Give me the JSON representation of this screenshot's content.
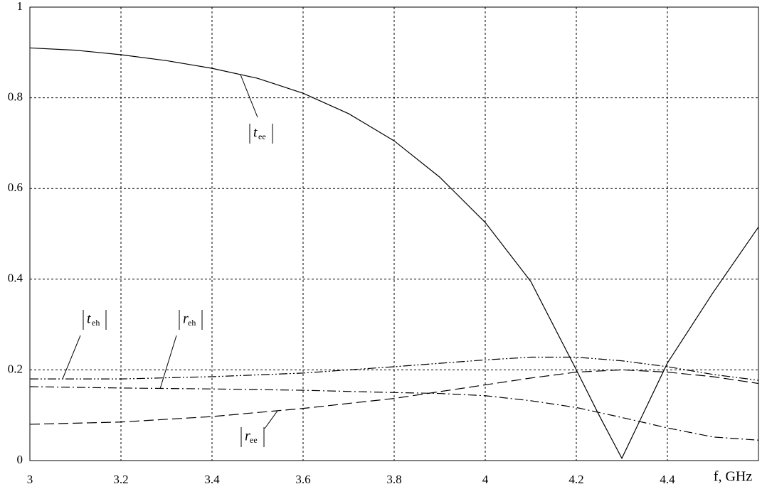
{
  "chart_data": {
    "type": "line",
    "x_label": "f, GHz",
    "xlim": [
      3,
      4.6
    ],
    "xticks": [
      3,
      3.2,
      3.4,
      3.6,
      3.8,
      4,
      4.2,
      4.4
    ],
    "ylim": [
      0,
      1
    ],
    "yticks": [
      0,
      0.2,
      0.4,
      0.6,
      0.8,
      1
    ],
    "grid": true,
    "series": [
      {
        "name": "t",
        "subscript": "ee",
        "color": "#000000",
        "linestyle": "solid",
        "x": [
          3,
          3.1,
          3.2,
          3.3,
          3.4,
          3.5,
          3.6,
          3.7,
          3.8,
          3.9,
          4.0,
          4.1,
          4.2,
          4.25,
          4.3,
          4.4,
          4.5,
          4.6
        ],
        "values": [
          0.91,
          0.905,
          0.895,
          0.882,
          0.865,
          0.843,
          0.81,
          0.765,
          0.705,
          0.625,
          0.525,
          0.395,
          0.2,
          0.1,
          0.005,
          0.215,
          0.37,
          0.515
        ]
      },
      {
        "name": "t",
        "subscript": "eh",
        "color": "#000000",
        "linestyle": "dash-dot-dot",
        "x": [
          3,
          3.2,
          3.4,
          3.6,
          3.8,
          4.0,
          4.1,
          4.2,
          4.3,
          4.4,
          4.5,
          4.6
        ],
        "values": [
          0.18,
          0.18,
          0.185,
          0.193,
          0.207,
          0.222,
          0.228,
          0.228,
          0.22,
          0.207,
          0.19,
          0.177
        ]
      },
      {
        "name": "r",
        "subscript": "eh",
        "color": "#000000",
        "linestyle": "dash-dot",
        "x": [
          3,
          3.2,
          3.4,
          3.6,
          3.8,
          3.9,
          4.0,
          4.1,
          4.2,
          4.3,
          4.4,
          4.5,
          4.6
        ],
        "values": [
          0.163,
          0.16,
          0.158,
          0.155,
          0.15,
          0.148,
          0.143,
          0.132,
          0.117,
          0.095,
          0.072,
          0.052,
          0.045
        ]
      },
      {
        "name": "r",
        "subscript": "ee",
        "color": "#000000",
        "linestyle": "dashed",
        "x": [
          3,
          3.2,
          3.4,
          3.6,
          3.8,
          4.0,
          4.1,
          4.2,
          4.3,
          4.4,
          4.5,
          4.6
        ],
        "values": [
          0.08,
          0.085,
          0.097,
          0.115,
          0.137,
          0.167,
          0.182,
          0.195,
          0.2,
          0.195,
          0.185,
          0.17
        ]
      }
    ]
  }
}
